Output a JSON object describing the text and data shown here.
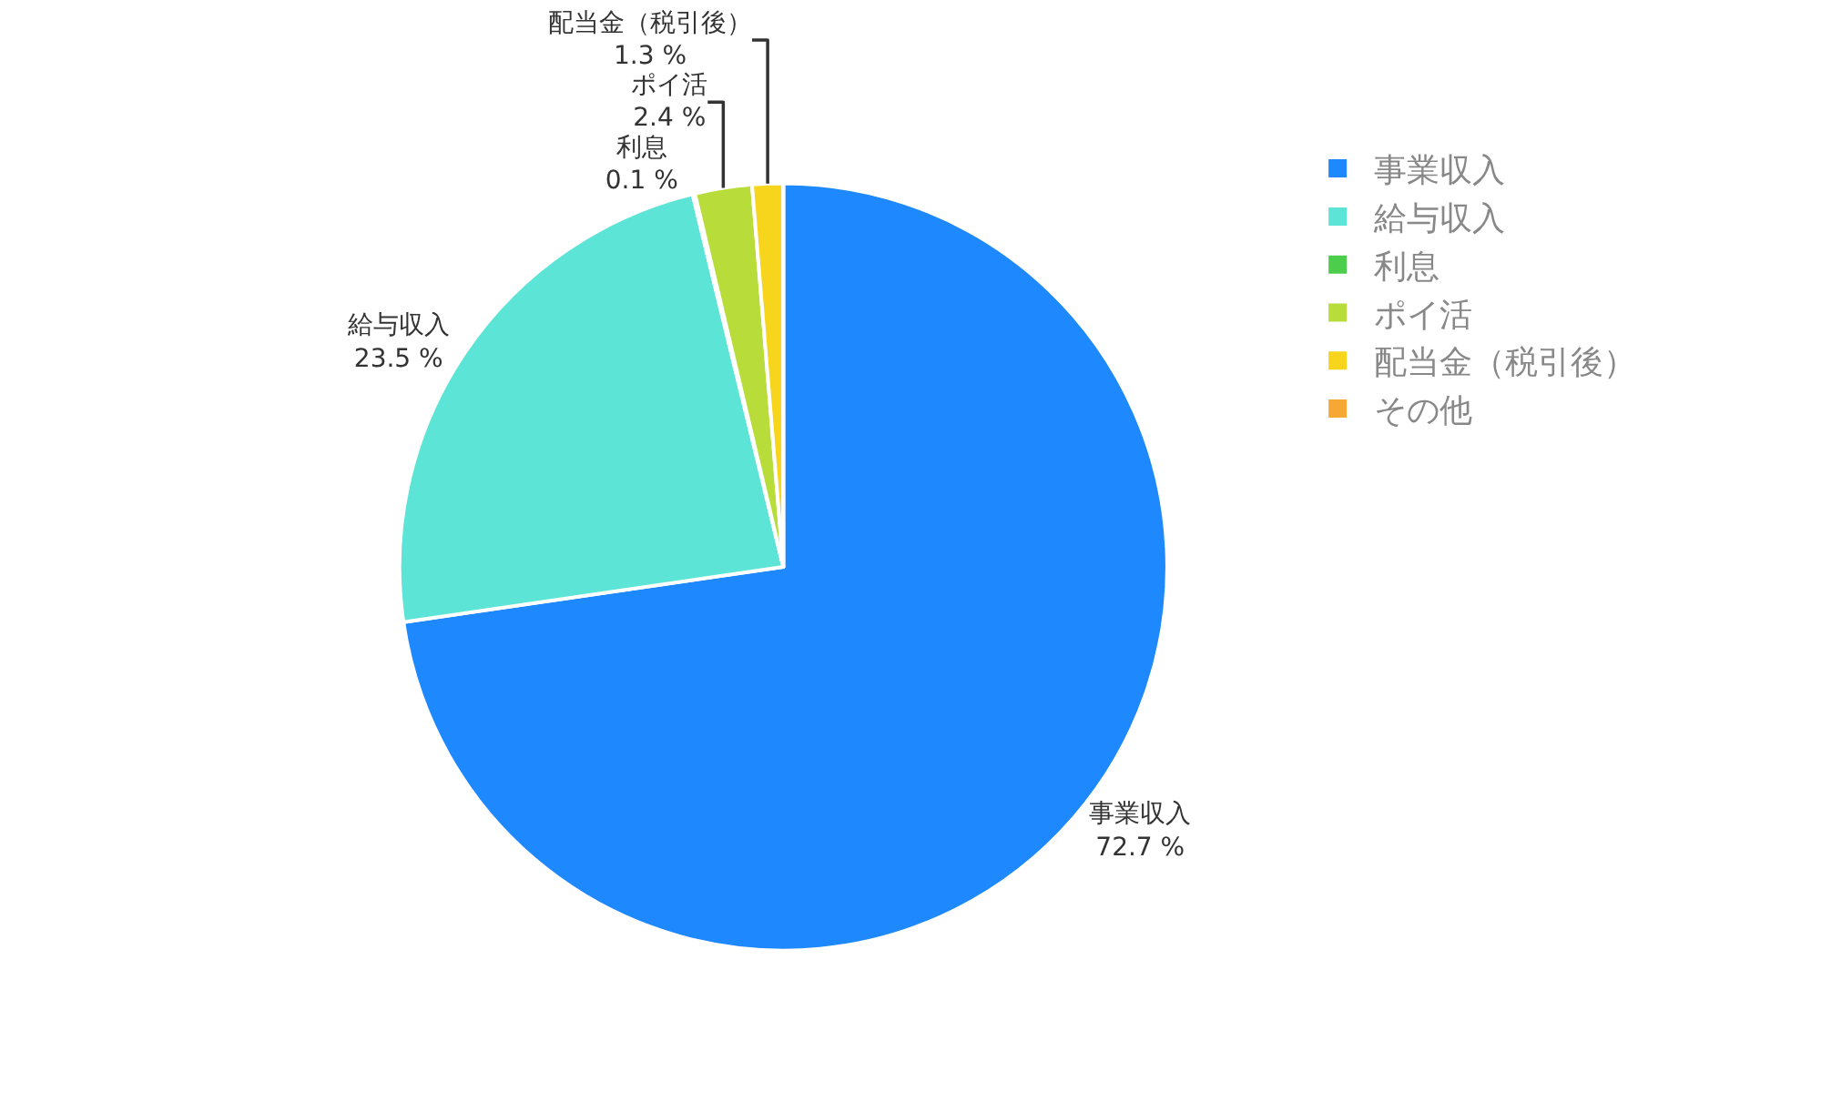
{
  "chart_data": {
    "type": "pie",
    "categories": [
      "事業収入",
      "給与収入",
      "利息",
      "ポイ活",
      "配当金（税引後）",
      "その他"
    ],
    "values": [
      72.7,
      23.5,
      0.1,
      2.4,
      1.3,
      0
    ],
    "value_labels": [
      "72.7 %",
      "23.5 %",
      "0.1 %",
      "2.4 %",
      "1.3 %",
      null
    ],
    "colors": [
      "#1e88ff",
      "#5ce5d6",
      "#4ccd4c",
      "#b8dd3a",
      "#f7d51d",
      "#f5a833"
    ],
    "legend": "top right"
  }
}
